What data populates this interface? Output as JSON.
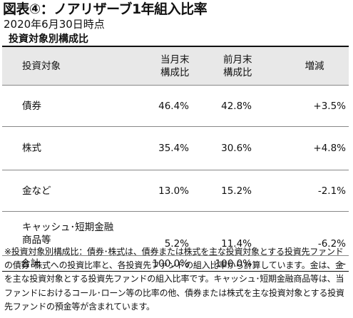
{
  "title": "図表④：ノアリザーブ1年組入比率",
  "date": "2020年6月30日時点",
  "section_heading": "投資対象別構成比",
  "table": {
    "headers": [
      "投資対象",
      "当月末\n構成比",
      "前月末\n構成比",
      "増減"
    ],
    "rows": [
      {
        "name": "債券",
        "current": "46.4%",
        "previous": "42.8%",
        "change": "+3.5%"
      },
      {
        "name": "株式",
        "current": "35.4%",
        "previous": "30.6%",
        "change": "+4.8%"
      },
      {
        "name": "金など",
        "current": "13.0%",
        "previous": "15.2%",
        "change": "-2.1%"
      },
      {
        "name": "キャッシュ･短期金融\n商品等",
        "current": "5.2%",
        "previous": "11.4%",
        "change": "-6.2%"
      }
    ],
    "total": {
      "name": "合計",
      "current": "100.0%",
      "previous": "100.0%",
      "change": "--"
    }
  },
  "note": "※投資対象別構成比：債券･株式は、債券または株式を主な投資対象とする投資先ファンドの債券･株式への投資比率と、各投資先ファンドの組入比率から計算しています。金は、金を主な投資対象とする投資先ファンドの組入比率です。キャッシュ･短期金融商品等は、当ファンドにおけるコール･ローン等の比率の他、債券または株式を主な投資対象とする投資先ファンドの預金等が含まれています。"
}
